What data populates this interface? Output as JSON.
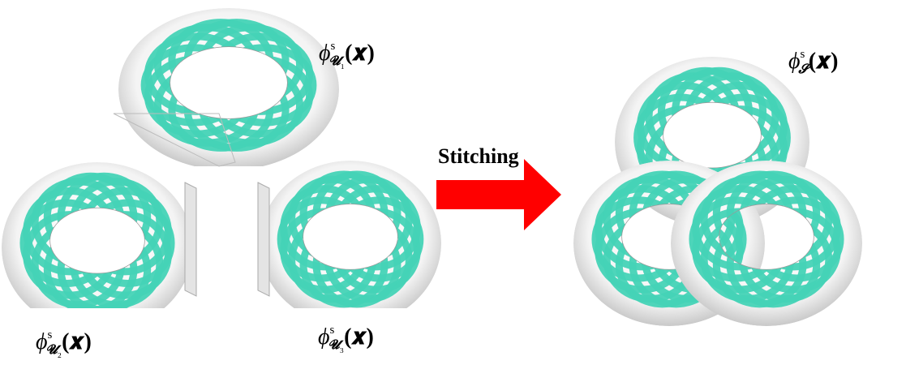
{
  "labels": [
    {
      "base": "ϕ",
      "sup": "s",
      "sub": "𝓤",
      "index": "₁",
      "arg": "(𝒙)"
    },
    {
      "base": "ϕ",
      "sup": "s",
      "sub": "𝓤",
      "index": "₂",
      "arg": "(𝒙)"
    },
    {
      "base": "ϕ",
      "sup": "s",
      "sub": "𝓤",
      "index": "₃",
      "arg": "(𝒙)"
    }
  ],
  "arrow_label": "Stitching",
  "result_label": {
    "base": "ϕ",
    "sup": "s",
    "sub": "𝓢",
    "arg": "(𝒙)"
  }
}
